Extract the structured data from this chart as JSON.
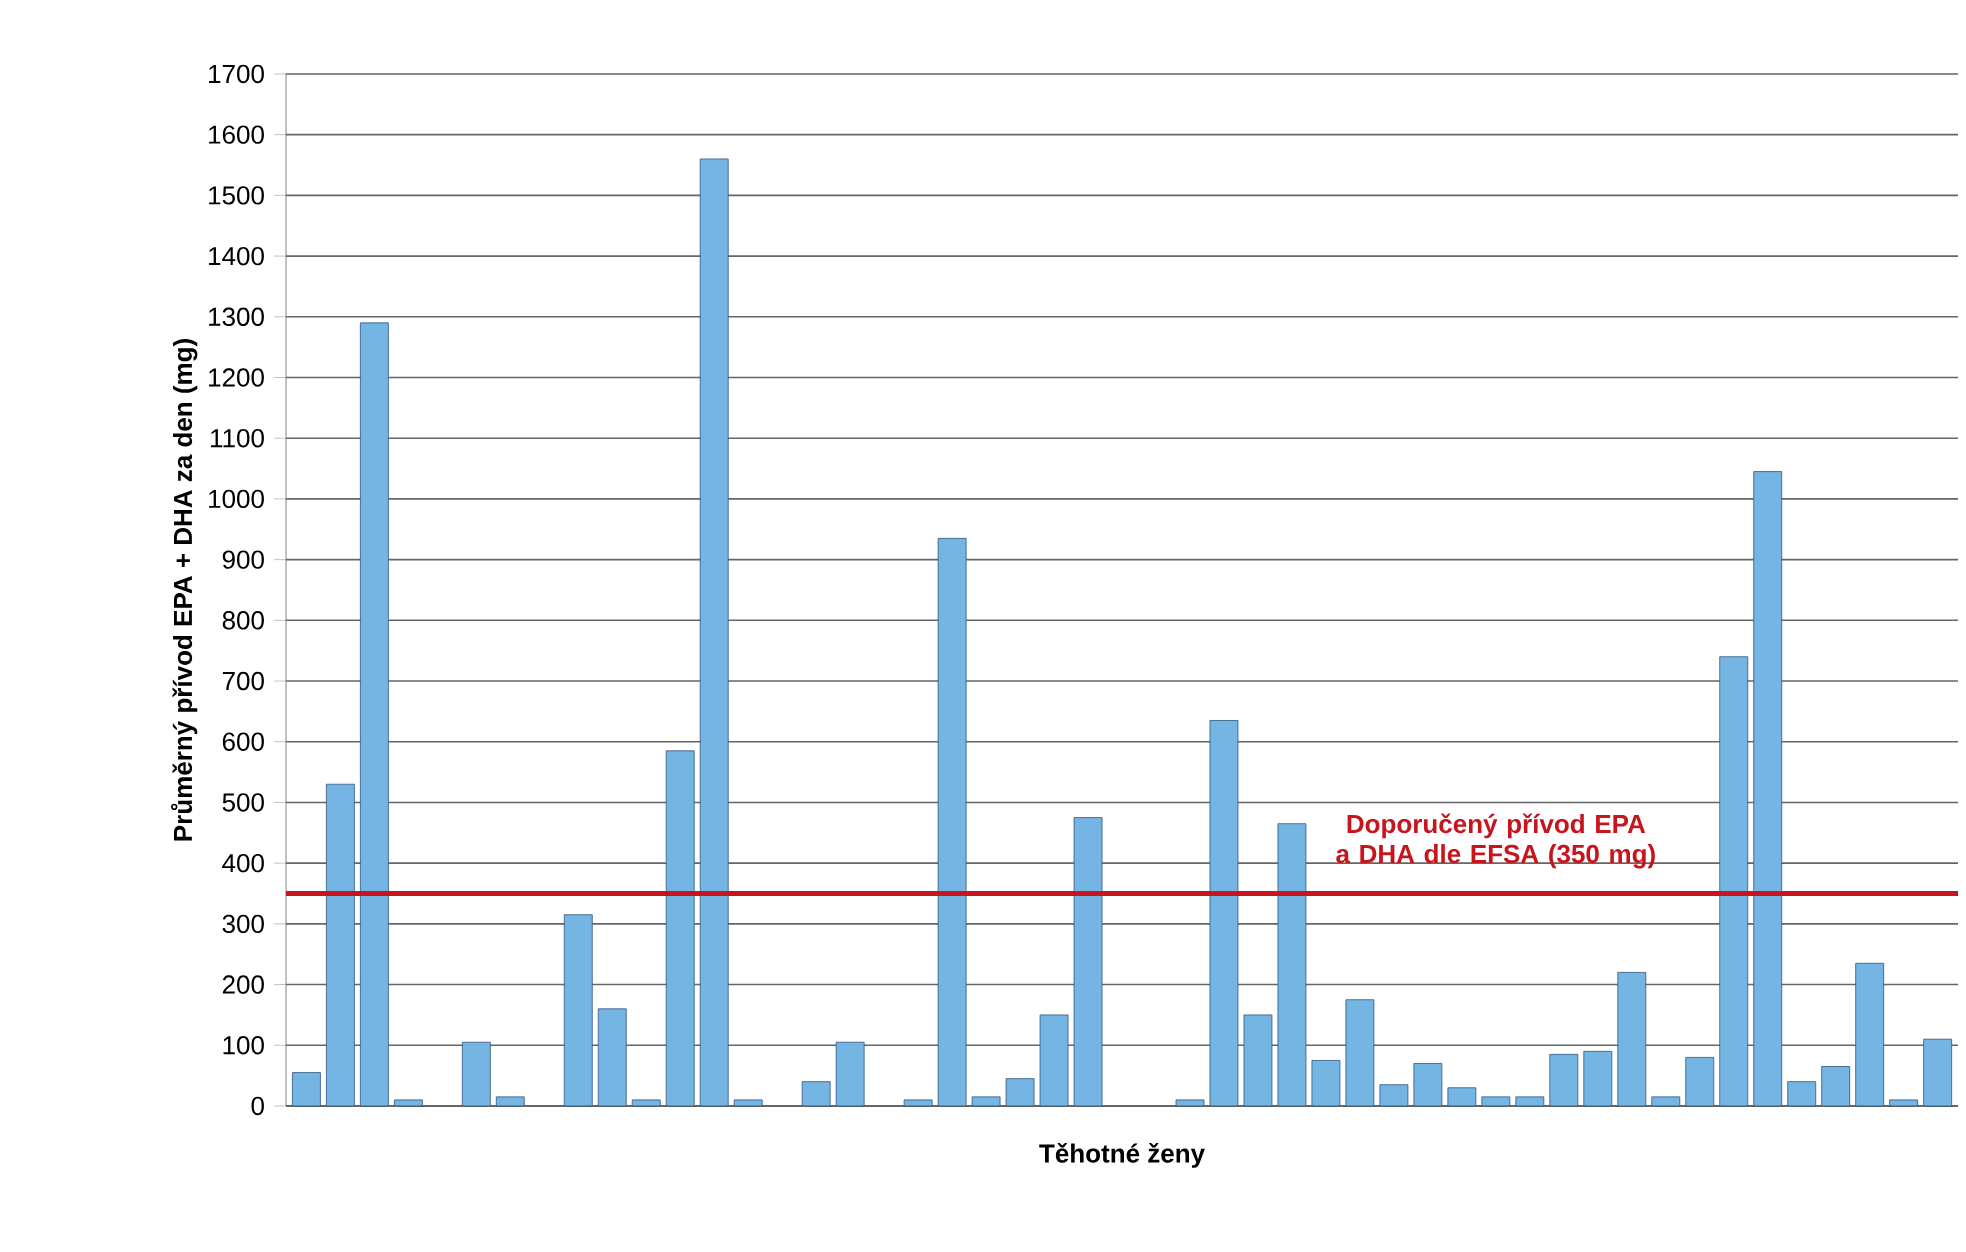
{
  "chart_data": {
    "type": "bar",
    "xlabel": "Těhotné ženy",
    "ylabel": "Průměrný přívod EPA + DHA za den (mg)",
    "categories": [
      null,
      null,
      null,
      null,
      null,
      null,
      null,
      null,
      null,
      null,
      null,
      null,
      null,
      null,
      null,
      null,
      null,
      null,
      null,
      null,
      null,
      null,
      null,
      null,
      null,
      null,
      null,
      null,
      null,
      null,
      null,
      null,
      null,
      null,
      null,
      null,
      null,
      null,
      null,
      null,
      null,
      null,
      null,
      null,
      null,
      null,
      null,
      null,
      null
    ],
    "values": [
      55,
      530,
      1290,
      10,
      null,
      105,
      15,
      null,
      315,
      160,
      10,
      585,
      1560,
      10,
      null,
      40,
      105,
      null,
      10,
      935,
      15,
      45,
      150,
      475,
      null,
      null,
      10,
      635,
      150,
      465,
      75,
      175,
      35,
      70,
      30,
      15,
      15,
      85,
      90,
      220,
      15,
      80,
      740,
      1045,
      40,
      65,
      235,
      10,
      110
    ],
    "color": "#74b5e4",
    "ylim": [
      0,
      1700
    ],
    "yticks": [
      0,
      100,
      200,
      300,
      400,
      500,
      600,
      700,
      800,
      900,
      1000,
      1100,
      1200,
      1300,
      1400,
      1500,
      1600,
      1700
    ],
    "grid": "y",
    "ref_lines": [
      {
        "axis": "y",
        "value": 350,
        "label": "Doporučený přívod EPA a DHA dle EFSA (350 mg)",
        "color": "#c8141c"
      }
    ]
  }
}
